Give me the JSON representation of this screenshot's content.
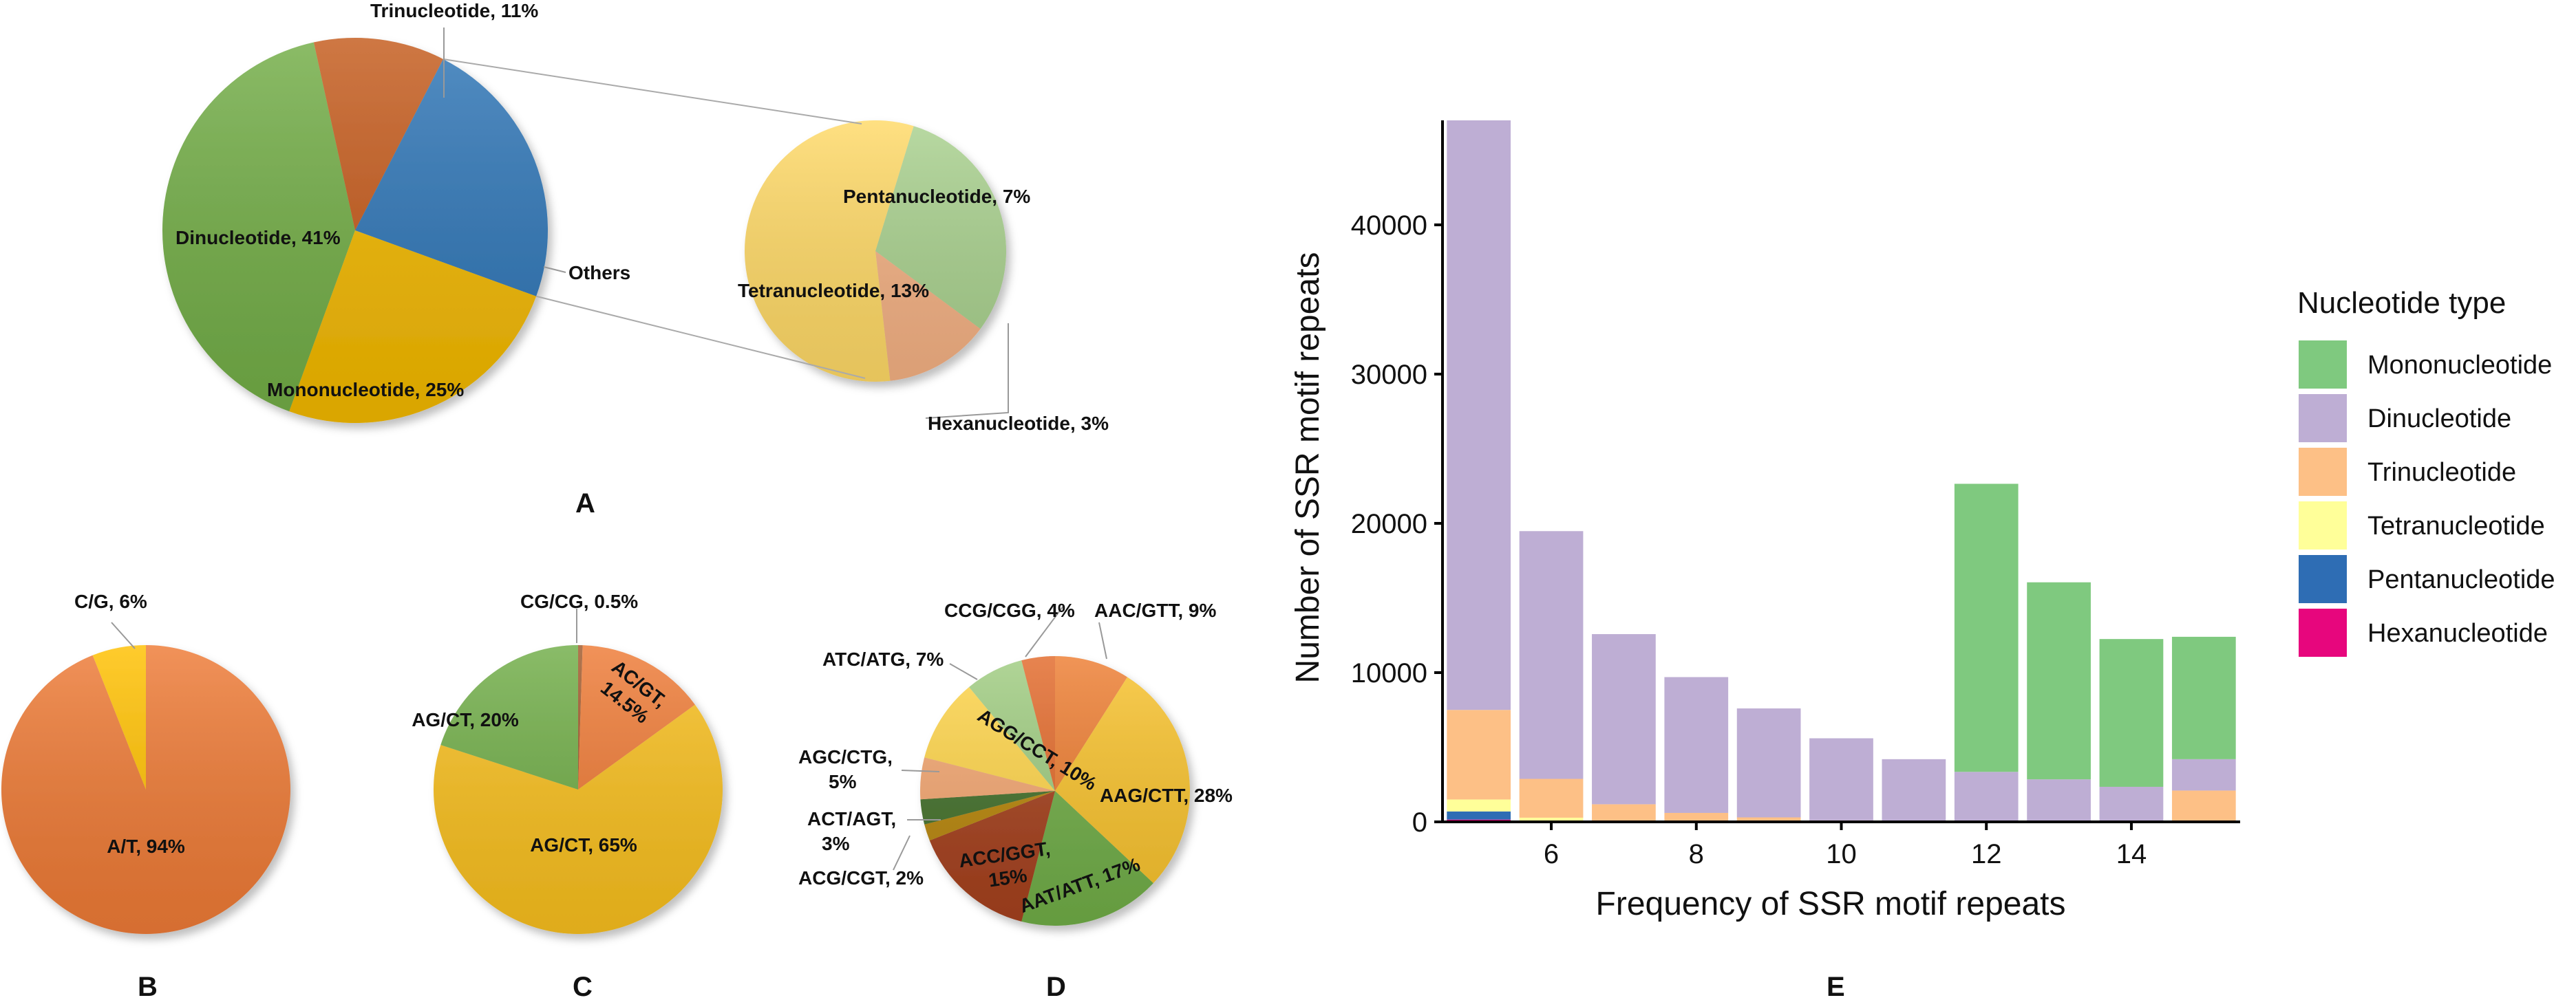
{
  "chart_data": [
    {
      "panel": "A",
      "type": "pie",
      "title": "",
      "slices": [
        {
          "label": "Dinucleotide, 41%",
          "value": 41,
          "color": "#72ad46"
        },
        {
          "label": "Trinucleotide, 11%",
          "value": 11,
          "color": "#c45a1b"
        },
        {
          "label": "Others",
          "value": 23,
          "color": "#2e75b6"
        },
        {
          "label": "Mononucleotide, 25%",
          "value": 25,
          "color": "#f2b800"
        }
      ],
      "exploded": {
        "title": "Others",
        "slices": [
          {
            "label": "Pentanucleotide, 7%",
            "value": 7,
            "color": "#a9d18e"
          },
          {
            "label": "Hexanucleotide, 3%",
            "value": 3,
            "color": "#f4b183"
          },
          {
            "label": "Tetranucleotide, 13%",
            "value": 13,
            "color": "#ffd966"
          }
        ]
      }
    },
    {
      "panel": "B",
      "type": "pie",
      "slices": [
        {
          "label": "A/T, 94%",
          "value": 94,
          "color": "#ee7a35"
        },
        {
          "label": "C/G, 6%",
          "value": 6,
          "color": "#ffc000"
        }
      ]
    },
    {
      "panel": "C",
      "type": "pie",
      "slices": [
        {
          "label": "CG/CG, 0.5%",
          "value": 0.5,
          "color": "#a0582a"
        },
        {
          "label": "AC/GT, 14.5%",
          "value": 14.5,
          "color": "#ee7a35"
        },
        {
          "label": "AG/CT, 65%",
          "value": 65,
          "color": "#f8bf1e"
        },
        {
          "label": "AG/CT, 20%",
          "value": 20,
          "color": "#70ad47"
        }
      ]
    },
    {
      "panel": "D",
      "type": "pie",
      "slices": [
        {
          "label": "AAC/GTT, 9%",
          "value": 9,
          "color": "#ed7d31"
        },
        {
          "label": "AAG/CTT, 28%",
          "value": 28,
          "color": "#f8c22c"
        },
        {
          "label": "AAT/ATT, 17%",
          "value": 17,
          "color": "#70ad47"
        },
        {
          "label": "ACC/GGT, 15%",
          "value": 15,
          "color": "#a5401d"
        },
        {
          "label": "ACG/CGT, 2%",
          "value": 2,
          "color": "#b8860b"
        },
        {
          "label": "ACT/AGT, 3%",
          "value": 3,
          "color": "#43702a"
        },
        {
          "label": "AGC/CTG, 5%",
          "value": 5,
          "color": "#f4a771"
        },
        {
          "label": "AGG/CCT, 10%",
          "value": 10,
          "color": "#ffd54a"
        },
        {
          "label": "ATC/ATG, 7%",
          "value": 7,
          "color": "#9fcc80"
        },
        {
          "label": "CCG/CGG, 4%",
          "value": 4,
          "color": "#e2692a"
        }
      ]
    },
    {
      "panel": "E",
      "type": "bar",
      "stacked": true,
      "xlabel": "Frequency of SSR motif repeats",
      "ylabel": "Number of SSR motif repeats",
      "categories": [
        5,
        6,
        7,
        8,
        9,
        10,
        11,
        12,
        13,
        14,
        15
      ],
      "xticks": [
        "6",
        "8",
        "10",
        "12",
        "14"
      ],
      "yticks": [
        "0",
        "10000",
        "20000",
        "30000",
        "40000"
      ],
      "ylim": [
        0,
        47000
      ],
      "legend_title": "Nucleotide type",
      "series": [
        {
          "name": "Hexanucleotide",
          "color": "#e7067d",
          "values": [
            150,
            0,
            0,
            0,
            0,
            0,
            0,
            0,
            0,
            0,
            0
          ]
        },
        {
          "name": "Pentanucleotide",
          "color": "#2e6db4",
          "values": [
            550,
            80,
            0,
            0,
            0,
            0,
            0,
            0,
            0,
            0,
            0
          ]
        },
        {
          "name": "Tetranucleotide",
          "color": "#ffff99",
          "values": [
            800,
            200,
            80,
            0,
            0,
            0,
            0,
            0,
            0,
            0,
            0
          ]
        },
        {
          "name": "Trinucleotide",
          "color": "#fdc086",
          "values": [
            6000,
            2600,
            1100,
            600,
            300,
            100,
            0,
            50,
            50,
            50,
            2100
          ]
        },
        {
          "name": "Dinucleotide",
          "color": "#beaed4",
          "values": [
            39500,
            16600,
            11400,
            9100,
            7300,
            5500,
            4200,
            3300,
            2800,
            2300,
            2100
          ]
        },
        {
          "name": "Mononucleotide",
          "color": "#7fc97f",
          "values": [
            0,
            0,
            0,
            0,
            0,
            0,
            0,
            19300,
            13200,
            9900,
            8200
          ]
        }
      ],
      "legend_order": [
        "Mononucleotide",
        "Dinucleotide",
        "Trinucleotide",
        "Tetranucleotide",
        "Pentanucleotide",
        "Hexanucleotide"
      ]
    }
  ]
}
